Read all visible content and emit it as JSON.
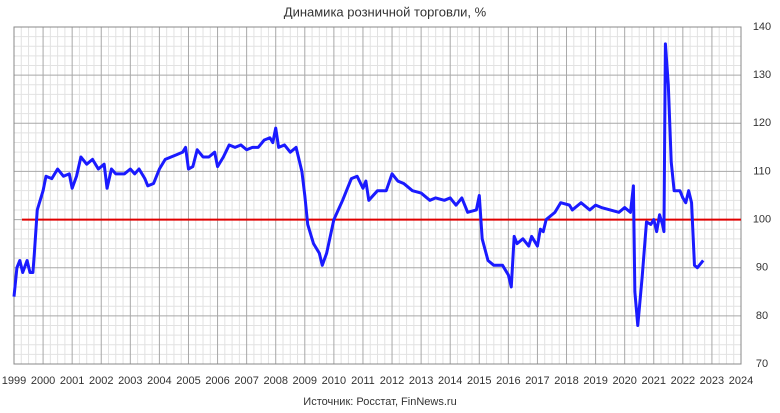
{
  "chart_data": {
    "type": "line",
    "title": "Динамика розничной торговли, %",
    "source": "Источник: Росстат, FinNews.ru",
    "xlim": [
      1999,
      2024
    ],
    "xticks": [
      1999,
      2000,
      2001,
      2002,
      2003,
      2004,
      2005,
      2006,
      2007,
      2008,
      2009,
      2010,
      2011,
      2012,
      2013,
      2014,
      2015,
      2016,
      2017,
      2018,
      2019,
      2020,
      2021,
      2022,
      2023,
      2024
    ],
    "ylim": [
      70,
      140
    ],
    "yticks": [
      70,
      80,
      90,
      100,
      110,
      120,
      130,
      140
    ],
    "grid": true,
    "reference_line": {
      "value": 100,
      "color": "#e00000"
    },
    "series": [
      {
        "color": "#1a1aff",
        "x": [
          1999.0,
          1999.1,
          1999.2,
          1999.3,
          1999.45,
          1999.55,
          1999.65,
          1999.7,
          1999.8,
          2000.0,
          2000.1,
          2000.3,
          2000.5,
          2000.7,
          2000.9,
          2001.0,
          2001.15,
          2001.3,
          2001.5,
          2001.7,
          2001.9,
          2002.1,
          2002.2,
          2002.35,
          2002.5,
          2002.8,
          2003.0,
          2003.15,
          2003.3,
          2003.5,
          2003.6,
          2003.8,
          2004.0,
          2004.2,
          2004.4,
          2004.6,
          2004.8,
          2004.9,
          2005.0,
          2005.15,
          2005.3,
          2005.5,
          2005.7,
          2005.9,
          2006.0,
          2006.2,
          2006.4,
          2006.6,
          2006.8,
          2007.0,
          2007.2,
          2007.4,
          2007.6,
          2007.8,
          2007.9,
          2008.0,
          2008.1,
          2008.3,
          2008.5,
          2008.7,
          2008.9,
          2009.0,
          2009.1,
          2009.3,
          2009.5,
          2009.6,
          2009.75,
          2010.0,
          2010.3,
          2010.6,
          2010.8,
          2011.0,
          2011.1,
          2011.2,
          2011.5,
          2011.8,
          2012.0,
          2012.2,
          2012.4,
          2012.7,
          2013.0,
          2013.3,
          2013.5,
          2013.8,
          2014.0,
          2014.2,
          2014.4,
          2014.6,
          2014.9,
          2015.0,
          2015.1,
          2015.3,
          2015.5,
          2015.8,
          2016.0,
          2016.1,
          2016.2,
          2016.3,
          2016.5,
          2016.7,
          2016.8,
          2017.0,
          2017.1,
          2017.2,
          2017.3,
          2017.6,
          2017.8,
          2018.1,
          2018.2,
          2018.5,
          2018.8,
          2019.0,
          2019.2,
          2019.5,
          2019.8,
          2020.0,
          2020.2,
          2020.3,
          2020.35,
          2020.45,
          2020.6,
          2020.75,
          2020.9,
          2021.0,
          2021.1,
          2021.2,
          2021.3,
          2021.35,
          2021.4,
          2021.5,
          2021.6,
          2021.7,
          2021.9,
          2022.0,
          2022.1,
          2022.2,
          2022.3,
          2022.4,
          2022.5,
          2022.7
        ],
        "values": [
          84,
          90,
          91.5,
          89,
          91.5,
          89,
          89,
          93,
          102,
          106,
          109,
          108.5,
          110.5,
          109,
          109.5,
          106.5,
          109,
          113,
          111.5,
          112.5,
          110.5,
          111.5,
          106.5,
          110.5,
          109.5,
          109.5,
          110.5,
          109.5,
          110.5,
          108.5,
          107,
          107.5,
          110.5,
          112.5,
          113,
          113.5,
          114,
          115,
          110.5,
          111,
          114.5,
          113,
          113,
          114,
          111,
          113,
          115.5,
          115,
          115.5,
          114.5,
          115,
          115,
          116.5,
          117,
          116,
          119,
          115,
          115.5,
          114,
          115,
          110,
          105,
          99,
          95,
          93,
          90.5,
          93,
          100,
          104,
          108.5,
          109,
          106.5,
          108,
          104,
          106,
          106,
          109.5,
          108,
          107.5,
          106,
          105.5,
          104,
          104.5,
          104,
          104.5,
          103,
          104.5,
          101.5,
          102,
          105,
          96,
          91.5,
          90.5,
          90.5,
          88.5,
          86,
          96.5,
          95,
          96,
          94.5,
          96.5,
          94.5,
          98,
          97.5,
          100,
          101.5,
          103.5,
          103,
          102,
          103.5,
          102,
          103,
          102.5,
          102,
          101.5,
          102.5,
          101.5,
          107,
          85,
          78,
          88,
          99.5,
          99,
          100,
          97.5,
          101,
          99,
          97.5,
          136.5,
          128,
          112,
          106,
          106,
          104.5,
          103.5,
          106,
          103.5,
          90.5,
          90,
          91.5
        ]
      }
    ]
  }
}
